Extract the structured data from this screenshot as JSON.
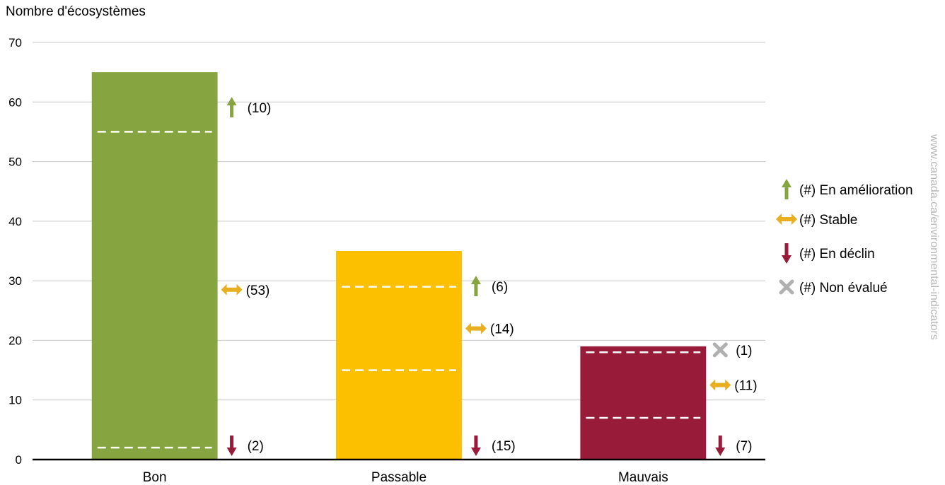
{
  "chart_data": {
    "type": "bar",
    "ylabel": "Nombre d'écosystèmes",
    "ylim": [
      0,
      70
    ],
    "yticks": [
      0,
      10,
      20,
      30,
      40,
      50,
      60,
      70
    ],
    "grid": true,
    "categories": [
      "Bon",
      "Passable",
      "Mauvais"
    ],
    "values": [
      65,
      35,
      19
    ],
    "bar_colors": [
      "#86a43f",
      "#fcc000",
      "#981b3a"
    ],
    "segments": [
      [
        {
          "trend": "improving",
          "count": 10,
          "label": "(10)"
        },
        {
          "trend": "stable",
          "count": 53,
          "label": "(53)"
        },
        {
          "trend": "declining",
          "count": 2,
          "label": "(2)"
        }
      ],
      [
        {
          "trend": "improving",
          "count": 6,
          "label": "(6)"
        },
        {
          "trend": "stable",
          "count": 14,
          "label": "(14)"
        },
        {
          "trend": "declining",
          "count": 15,
          "label": "(15)"
        }
      ],
      [
        {
          "trend": "not-assessed",
          "count": 1,
          "label": "(1)"
        },
        {
          "trend": "stable",
          "count": 11,
          "label": "(11)"
        },
        {
          "trend": "declining",
          "count": 7,
          "label": "(7)"
        }
      ]
    ],
    "legend": {
      "position": "right",
      "items": [
        {
          "trend": "improving",
          "label": "(#) En amélioration"
        },
        {
          "trend": "stable",
          "label": "(#) Stable"
        },
        {
          "trend": "declining",
          "label": "(#) En déclin"
        },
        {
          "trend": "not-assessed",
          "label": "(#) Non évalué"
        }
      ]
    }
  },
  "trend_icons": {
    "improving": {
      "icon": "up-arrow-icon",
      "color": "#86a43f"
    },
    "stable": {
      "icon": "left-right-arrow-icon",
      "color": "#e8b020"
    },
    "declining": {
      "icon": "down-arrow-icon",
      "color": "#981b3a"
    },
    "not-assessed": {
      "icon": "x-mark-icon",
      "color": "#b0b0b0"
    }
  },
  "watermark": "www.canada.ca/environmental-indicators"
}
